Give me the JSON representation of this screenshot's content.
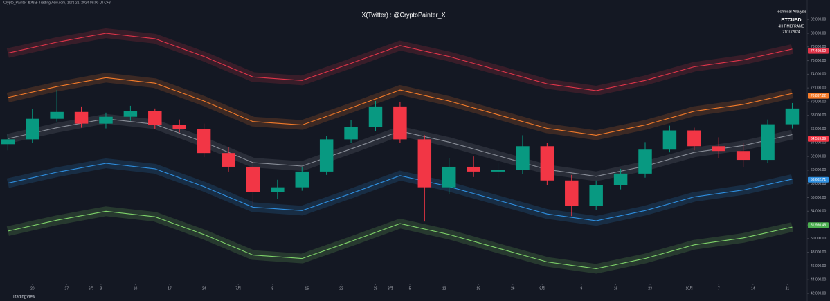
{
  "chart_data": {
    "type": "candlestick",
    "title": "X(Twitter) : @CryptoPainter_X",
    "header": "Crypto_Painter 发布于 TradingView.com, 10月 21, 2024 09:00 UTC+8",
    "footer": "TradingView",
    "info": {
      "heading": "Technical Analysis",
      "symbol": "BTCUSD",
      "timeframe": "4H TIMEFRAME",
      "date": "21/10/2024"
    },
    "x": [
      -5,
      0,
      5,
      10,
      15,
      20,
      25,
      30,
      35,
      40,
      45,
      50,
      55,
      60,
      65,
      70,
      75,
      80,
      85,
      90,
      95,
      100,
      105,
      110,
      115,
      120,
      125,
      130,
      135,
      140,
      145,
      150,
      155
    ],
    "open": [
      63800,
      64500,
      67500,
      68500,
      66800,
      67800,
      68600,
      66600,
      66000,
      62500,
      60500,
      56800,
      57500,
      59800,
      64500,
      66300,
      69300,
      64500,
      57500,
      60500,
      59800,
      60000,
      63500,
      58500,
      54800,
      57800,
      59500,
      63000,
      65800,
      63500,
      62800,
      61500,
      66700
    ],
    "high": [
      65200,
      68900,
      71700,
      69300,
      68400,
      69400,
      69000,
      67400,
      66800,
      63400,
      61200,
      58600,
      60400,
      65000,
      67300,
      70100,
      70000,
      65100,
      61800,
      62000,
      61000,
      65100,
      64000,
      59300,
      58500,
      60200,
      64100,
      66500,
      66200,
      64800,
      64000,
      67400,
      69800
    ],
    "low": [
      62900,
      64000,
      67100,
      66200,
      66100,
      67200,
      66000,
      65500,
      61900,
      59800,
      54600,
      55800,
      57000,
      59300,
      64000,
      65700,
      64000,
      52500,
      56500,
      59000,
      58900,
      59400,
      57800,
      53300,
      54200,
      57200,
      58900,
      62600,
      62900,
      61800,
      60400,
      61000,
      66100
    ],
    "close": [
      64500,
      67500,
      68500,
      66800,
      67800,
      68600,
      66600,
      66000,
      62500,
      60500,
      56800,
      57500,
      59800,
      64500,
      66300,
      69300,
      64500,
      57500,
      60500,
      59800,
      60000,
      63500,
      58500,
      54800,
      57800,
      59500,
      63000,
      65800,
      63500,
      62800,
      61500,
      66700,
      69000
    ],
    "up_color": "#089981",
    "down_color": "#f23645",
    "series": [
      {
        "name": "Upper 3",
        "color": "#e0354a",
        "x": [
          -5,
          5,
          15,
          25,
          35,
          45,
          55,
          65,
          75,
          85,
          95,
          105,
          115,
          125,
          135,
          145,
          155
        ],
        "values": [
          77100,
          78700,
          80000,
          79200,
          76600,
          73600,
          73100,
          75600,
          78200,
          76600,
          74600,
          72600,
          71600,
          73100,
          75100,
          76100,
          77700
        ]
      },
      {
        "name": "Upper 2",
        "color": "#f57c2a",
        "x": [
          -5,
          5,
          15,
          25,
          35,
          45,
          55,
          65,
          75,
          85,
          95,
          105,
          115,
          125,
          135,
          145,
          155
        ],
        "values": [
          70600,
          72200,
          73500,
          72700,
          70100,
          67100,
          66600,
          69100,
          71700,
          70100,
          68100,
          66100,
          65100,
          66600,
          68600,
          69600,
          71200
        ]
      },
      {
        "name": "Center",
        "color": "#8a8f99",
        "x": [
          -5,
          5,
          15,
          25,
          35,
          45,
          55,
          65,
          75,
          85,
          95,
          105,
          115,
          125,
          135,
          145,
          155
        ],
        "values": [
          64600,
          66200,
          67500,
          66700,
          64100,
          61100,
          60600,
          63100,
          65700,
          64100,
          62100,
          60100,
          59100,
          60600,
          62600,
          63600,
          65200
        ]
      },
      {
        "name": "Lower 2",
        "color": "#2f8fe0",
        "x": [
          -5,
          5,
          15,
          25,
          35,
          45,
          55,
          65,
          75,
          85,
          95,
          105,
          115,
          125,
          135,
          145,
          155
        ],
        "values": [
          58100,
          59700,
          61000,
          60200,
          57600,
          54600,
          54100,
          56600,
          59200,
          57600,
          55600,
          53600,
          52600,
          54100,
          56100,
          57100,
          58700
        ]
      },
      {
        "name": "Lower 3",
        "color": "#7fd36a",
        "x": [
          -5,
          5,
          15,
          25,
          35,
          45,
          55,
          65,
          75,
          85,
          95,
          105,
          115,
          125,
          135,
          145,
          155
        ],
        "values": [
          51100,
          52700,
          54000,
          53200,
          50600,
          47600,
          47100,
          49600,
          52200,
          50600,
          48600,
          46600,
          45600,
          47100,
          49100,
          50100,
          51700
        ]
      }
    ],
    "price_tags": [
      {
        "value": 77409.62,
        "label": "77,409.62",
        "color": "#e0354a"
      },
      {
        "value": 70837.22,
        "label": "70,837.22",
        "color": "#f57c2a"
      },
      {
        "value": 64559.89,
        "label": "64,559.89",
        "color": "#f23645"
      },
      {
        "value": 58602.71,
        "label": "58,602.71",
        "color": "#2f8fe0"
      },
      {
        "value": 51986.48,
        "label": "51,986.48",
        "color": "#4caf50"
      }
    ],
    "xlim": [
      -6.6,
      157.9
    ],
    "xticks": [
      {
        "value": 0,
        "label": "20"
      },
      {
        "value": 7,
        "label": "27"
      },
      {
        "value": 12,
        "label": "6月"
      },
      {
        "value": 14,
        "label": "3"
      },
      {
        "value": 21,
        "label": "10"
      },
      {
        "value": 28,
        "label": "17"
      },
      {
        "value": 35,
        "label": "24"
      },
      {
        "value": 42,
        "label": "7月"
      },
      {
        "value": 49,
        "label": "8"
      },
      {
        "value": 56,
        "label": "15"
      },
      {
        "value": 63,
        "label": "22"
      },
      {
        "value": 70,
        "label": "29"
      },
      {
        "value": 73,
        "label": "8月"
      },
      {
        "value": 77,
        "label": "5"
      },
      {
        "value": 84,
        "label": "12"
      },
      {
        "value": 91,
        "label": "19"
      },
      {
        "value": 98,
        "label": "26"
      },
      {
        "value": 104,
        "label": "9月"
      },
      {
        "value": 112,
        "label": "9"
      },
      {
        "value": 119,
        "label": "16"
      },
      {
        "value": 126,
        "label": "23"
      },
      {
        "value": 134,
        "label": "10月"
      },
      {
        "value": 140,
        "label": "7"
      },
      {
        "value": 147,
        "label": "14"
      },
      {
        "value": 154,
        "label": "21"
      }
    ],
    "ylim": [
      41600,
      84850
    ],
    "yticks": [
      {
        "value": 42000,
        "label": "42,000.00"
      },
      {
        "value": 44000,
        "label": "44,000.00"
      },
      {
        "value": 46000,
        "label": "46,000.00"
      },
      {
        "value": 48000,
        "label": "48,000.00"
      },
      {
        "value": 50000,
        "label": "50,000.00"
      },
      {
        "value": 52000,
        "label": "52,000.00"
      },
      {
        "value": 54000,
        "label": "54,000.00"
      },
      {
        "value": 56000,
        "label": "56,000.00"
      },
      {
        "value": 58000,
        "label": "58,000.00"
      },
      {
        "value": 60000,
        "label": "60,000.00"
      },
      {
        "value": 62000,
        "label": "62,000.00"
      },
      {
        "value": 64000,
        "label": "64,000.00"
      },
      {
        "value": 66000,
        "label": "66,000.00"
      },
      {
        "value": 68000,
        "label": "68,000.00"
      },
      {
        "value": 70000,
        "label": "70,000.00"
      },
      {
        "value": 72000,
        "label": "72,000.00"
      },
      {
        "value": 74000,
        "label": "74,000.00"
      },
      {
        "value": 76000,
        "label": "76,000.00"
      },
      {
        "value": 78000,
        "label": "78,000.00"
      },
      {
        "value": 80000,
        "label": "80,000.00"
      },
      {
        "value": 82000,
        "label": "82,000.00"
      }
    ],
    "grid": false
  }
}
